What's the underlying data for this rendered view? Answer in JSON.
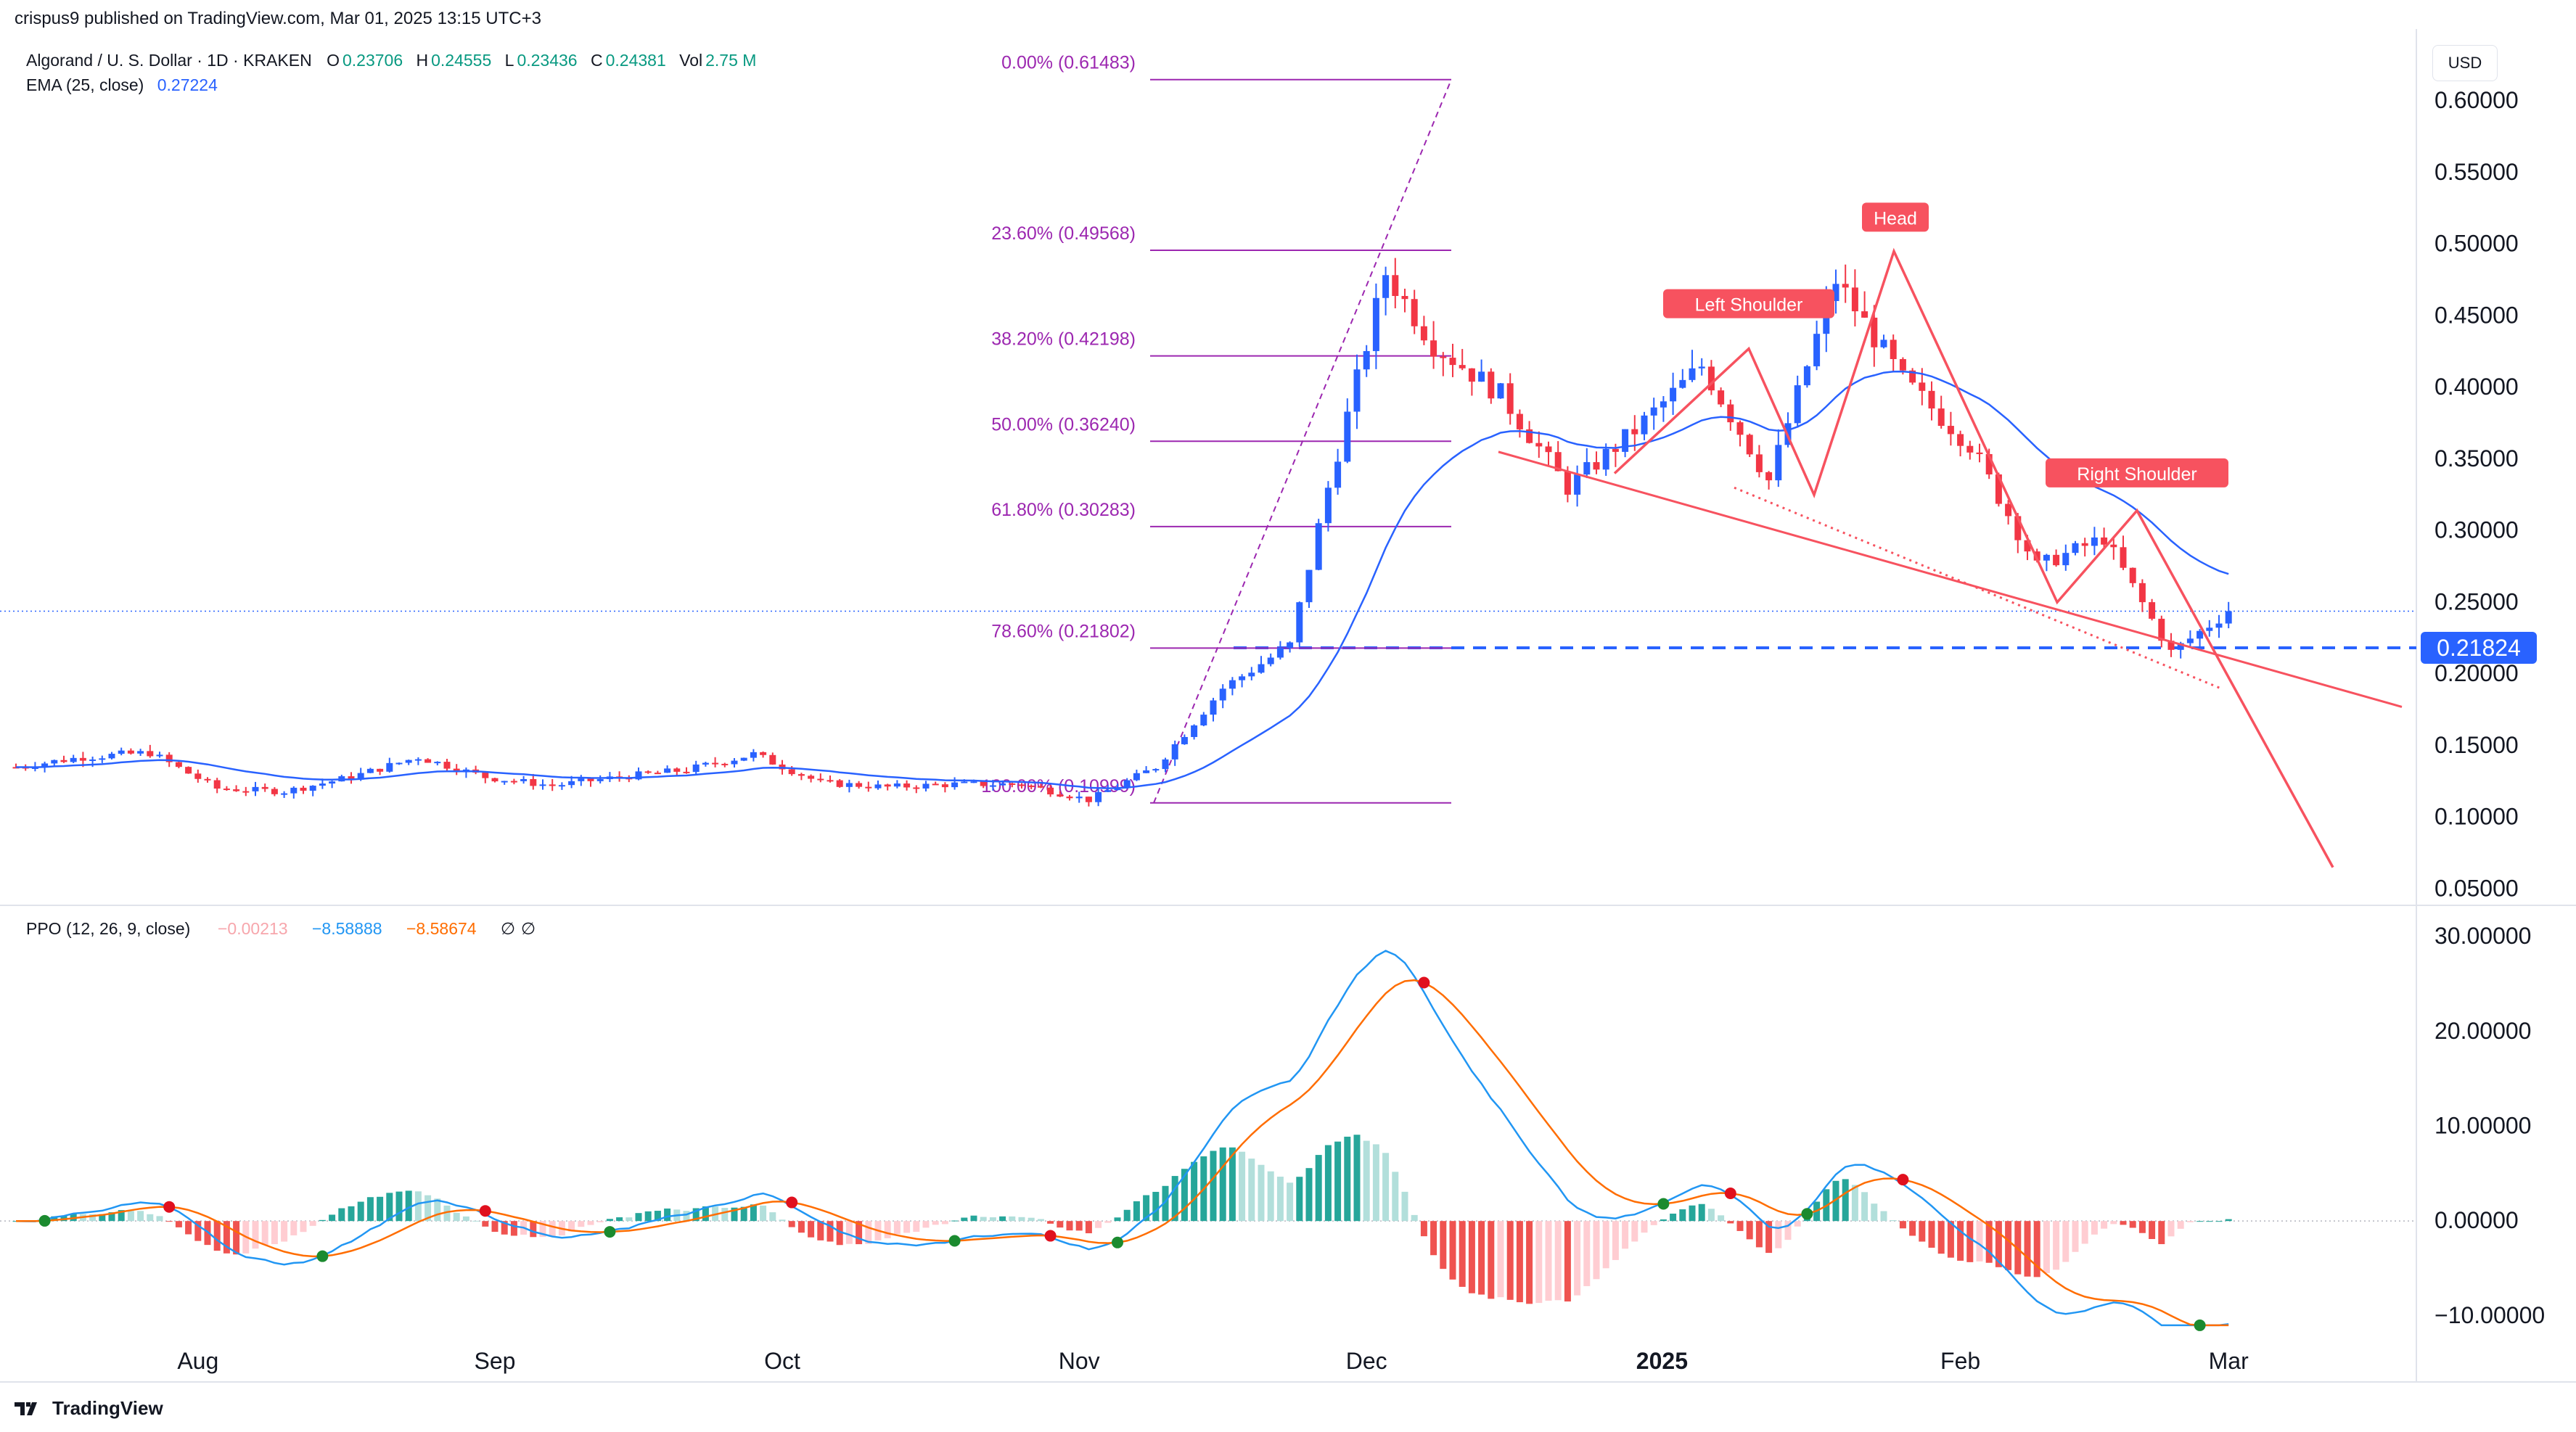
{
  "header": {
    "publisher": "crispus9 published on TradingView.com, Mar 01, 2025 13:15 UTC+3",
    "symbol": "Algorand / U. S. Dollar · 1D · KRAKEN",
    "open_label": "O",
    "open": "0.23706",
    "high_label": "H",
    "high": "0.24555",
    "low_label": "L",
    "low": "0.23436",
    "close_label": "C",
    "close": "0.24381",
    "vol_label": "Vol",
    "vol": "2.75 M",
    "ema_label": "EMA (25, close)",
    "ema_value": "0.27224",
    "currency": "USD",
    "footer_brand": "TradingView"
  },
  "colors": {
    "up": "#2962ff",
    "down": "#f23645",
    "ema": "#2962ff",
    "fib": "#9c27b0",
    "pattern": "#f7525f",
    "ppo_line": "#2196f3",
    "signal_line": "#ff6d00",
    "hist_up_strong": "#26a69a",
    "hist_up_weak": "#b2dfdb",
    "hist_down_strong": "#ef5350",
    "hist_down_weak": "#ffcdd2"
  },
  "chart_data": [
    {
      "type": "candlestick",
      "title": "Algorand / U. S. Dollar · 1D · KRAKEN",
      "ylabel": "USD",
      "ylim": [
        0.04,
        0.64
      ],
      "y_ticks": [
        "0.60000",
        "0.55000",
        "0.50000",
        "0.45000",
        "0.40000",
        "0.35000",
        "0.30000",
        "0.25000",
        "0.20000",
        "0.15000",
        "0.10000",
        "0.05000"
      ],
      "x_ticks": [
        "Aug",
        "Sep",
        "Oct",
        "Nov",
        "Dec",
        "2025",
        "Feb",
        "Mar"
      ],
      "close_path_approx": {
        "dates": [
          "Jul 13",
          "Jul 20",
          "Jul 27",
          "Aug 3",
          "Aug 10",
          "Aug 17",
          "Aug 24",
          "Aug 31",
          "Sep 7",
          "Sep 14",
          "Sep 21",
          "Sep 28",
          "Oct 5",
          "Oct 12",
          "Oct 19",
          "Oct 26",
          "Nov 2",
          "Nov 9",
          "Nov 16",
          "Nov 23",
          "Nov 27",
          "Dec 3",
          "Dec 8",
          "Dec 15",
          "Dec 22",
          "Dec 29",
          "Jan 5",
          "Jan 12",
          "Jan 19",
          "Jan 26",
          "Feb 2",
          "Feb 9",
          "Feb 16",
          "Feb 23",
          "Mar 1"
        ],
        "close": [
          0.135,
          0.142,
          0.145,
          0.12,
          0.118,
          0.128,
          0.142,
          0.128,
          0.122,
          0.128,
          0.133,
          0.144,
          0.124,
          0.121,
          0.123,
          0.123,
          0.112,
          0.135,
          0.19,
          0.22,
          0.33,
          0.48,
          0.43,
          0.395,
          0.33,
          0.37,
          0.415,
          0.335,
          0.475,
          0.405,
          0.36,
          0.275,
          0.295,
          0.215,
          0.24381
        ]
      },
      "ema_25": {
        "last": 0.27224
      },
      "price_line": {
        "label": "0.21824",
        "value": 0.21824
      },
      "fibonacci": [
        {
          "label": "0.00% (0.61483)",
          "value": 0.61483
        },
        {
          "label": "23.60% (0.49568)",
          "value": 0.49568
        },
        {
          "label": "38.20% (0.42198)",
          "value": 0.42198
        },
        {
          "label": "50.00% (0.36240)",
          "value": 0.3624
        },
        {
          "label": "61.80% (0.30283)",
          "value": 0.30283
        },
        {
          "label": "78.60% (0.21802)",
          "value": 0.21802
        },
        {
          "label": "100.00% (0.10999)",
          "value": 0.10999
        }
      ],
      "annotations": [
        "Left Shoulder",
        "Head",
        "Right Shoulder"
      ]
    },
    {
      "type": "line",
      "title": "PPO (12, 26, 9, close)",
      "legend_values": [
        "−0.00213",
        "−8.58888",
        "−8.58674"
      ],
      "legend_flags": [
        "∅",
        "∅"
      ],
      "ylim": [
        -12,
        32
      ],
      "y_ticks": [
        "30.00000",
        "20.00000",
        "10.00000",
        "0.00000",
        "−10.00000"
      ],
      "series": [
        {
          "name": "PPO",
          "last": -8.58888,
          "peak": 28.5,
          "trough": -9.5
        },
        {
          "name": "Signal",
          "last": -8.58674,
          "peak": 25.0
        }
      ]
    }
  ]
}
